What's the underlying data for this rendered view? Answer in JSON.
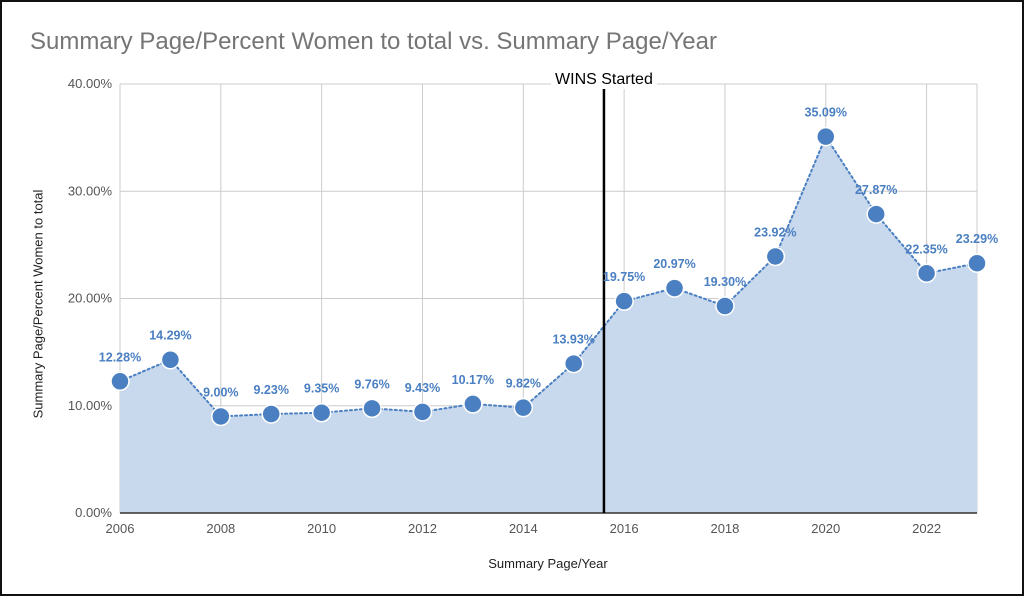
{
  "chart_data": {
    "type": "area",
    "title": "Summary Page/Percent Women to total vs. Summary Page/Year",
    "xlabel": "Summary Page/Year",
    "ylabel": "Summary Page/Percent Women to total",
    "x": [
      2006,
      2007,
      2008,
      2009,
      2010,
      2011,
      2012,
      2013,
      2014,
      2015,
      2016,
      2017,
      2018,
      2019,
      2020,
      2021,
      2022,
      2023
    ],
    "series": [
      {
        "values": [
          12.28,
          14.29,
          9.0,
          9.23,
          9.35,
          9.76,
          9.43,
          10.17,
          9.82,
          13.93,
          19.75,
          20.97,
          19.3,
          23.92,
          35.09,
          27.87,
          22.35,
          23.29
        ],
        "labels": [
          "12.28%",
          "14.29%",
          "9.00%",
          "9.23%",
          "9.35%",
          "9.76%",
          "9.43%",
          "10.17%",
          "9.82%",
          "13.93%",
          "19.75%",
          "20.97%",
          "19.30%",
          "23.92%",
          "35.09%",
          "27.87%",
          "22.35%",
          "23.29%"
        ],
        "color": "#4a7fc1"
      }
    ],
    "xlim": [
      2006,
      2023
    ],
    "ylim": [
      0,
      40
    ],
    "xticks": [
      2006,
      2008,
      2010,
      2012,
      2014,
      2016,
      2018,
      2020,
      2022
    ],
    "xtick_labels": [
      "2006",
      "2008",
      "2010",
      "2012",
      "2014",
      "2016",
      "2018",
      "2020",
      "2022"
    ],
    "yticks": [
      0,
      10,
      20,
      30,
      40
    ],
    "ytick_labels": [
      "0.00%",
      "10.00%",
      "20.00%",
      "30.00%",
      "40.00%"
    ],
    "grid": true,
    "annotation": {
      "text": "WINS Started",
      "x": 2015.6
    },
    "fill_color": "#c9d9ed",
    "grid_color": "#cccccc"
  }
}
